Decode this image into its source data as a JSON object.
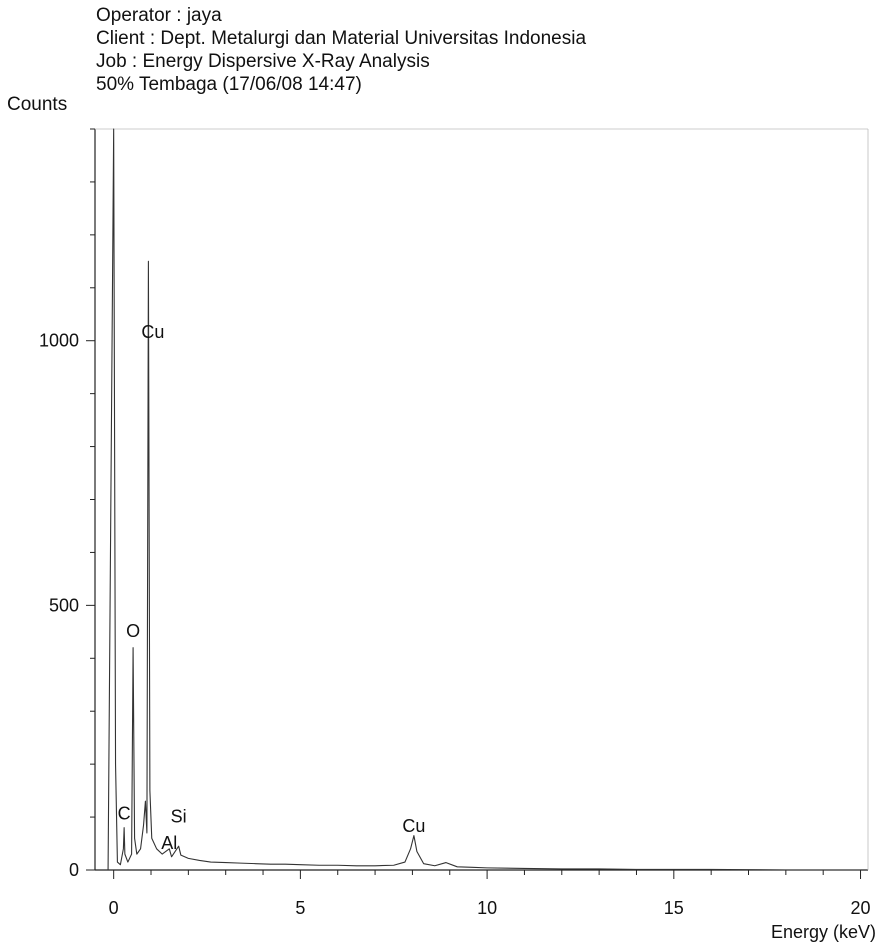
{
  "header": {
    "operator": "Operator : jaya",
    "client": "Client : Dept. Metalurgi dan Material Universitas Indonesia",
    "job": "Job : Energy Dispersive X-Ray Analysis",
    "sample": "50% Tembaga (17/06/08 14:47)"
  },
  "chart_data": {
    "type": "line",
    "xlabel": "Energy (keV)",
    "ylabel": "Counts",
    "xlim": [
      -0.5,
      20.2
    ],
    "ylim": [
      0,
      1400
    ],
    "xticks": [
      0,
      5,
      10,
      15,
      20
    ],
    "yticks": [
      0,
      500,
      1000
    ],
    "grid": false,
    "series": [
      {
        "points": [
          [
            -0.15,
            0
          ],
          [
            0.0,
            1400
          ],
          [
            0.05,
            200
          ],
          [
            0.1,
            15
          ],
          [
            0.18,
            10
          ],
          [
            0.26,
            40
          ],
          [
            0.28,
            80
          ],
          [
            0.3,
            30
          ],
          [
            0.38,
            15
          ],
          [
            0.48,
            30
          ],
          [
            0.52,
            420
          ],
          [
            0.56,
            60
          ],
          [
            0.62,
            30
          ],
          [
            0.72,
            40
          ],
          [
            0.8,
            85
          ],
          [
            0.85,
            130
          ],
          [
            0.89,
            70
          ],
          [
            0.93,
            1150
          ],
          [
            0.97,
            150
          ],
          [
            1.02,
            60
          ],
          [
            1.15,
            40
          ],
          [
            1.3,
            30
          ],
          [
            1.49,
            40
          ],
          [
            1.55,
            25
          ],
          [
            1.74,
            45
          ],
          [
            1.8,
            28
          ],
          [
            2.0,
            22
          ],
          [
            2.3,
            18
          ],
          [
            2.6,
            15
          ],
          [
            3.0,
            14
          ],
          [
            3.4,
            13
          ],
          [
            3.8,
            12
          ],
          [
            4.2,
            11
          ],
          [
            4.6,
            11
          ],
          [
            5.0,
            10
          ],
          [
            5.5,
            9
          ],
          [
            6.0,
            9
          ],
          [
            6.5,
            8
          ],
          [
            7.0,
            8
          ],
          [
            7.5,
            9
          ],
          [
            7.8,
            15
          ],
          [
            7.95,
            40
          ],
          [
            8.04,
            65
          ],
          [
            8.12,
            35
          ],
          [
            8.3,
            12
          ],
          [
            8.6,
            8
          ],
          [
            8.9,
            14
          ],
          [
            9.2,
            6
          ],
          [
            9.6,
            5
          ],
          [
            10.0,
            4
          ],
          [
            11.0,
            3
          ],
          [
            12.0,
            2
          ],
          [
            13.0,
            2
          ],
          [
            14.0,
            1
          ],
          [
            16.0,
            1
          ],
          [
            18.0,
            0
          ],
          [
            20.0,
            0
          ]
        ]
      }
    ],
    "annotations": [
      {
        "label": "Cu",
        "x": 1.05,
        "y": 1005
      },
      {
        "label": "O",
        "x": 0.52,
        "y": 440
      },
      {
        "label": "C",
        "x": 0.28,
        "y": 95
      },
      {
        "label": "Si",
        "x": 1.74,
        "y": 90
      },
      {
        "label": "Al",
        "x": 1.49,
        "y": 40
      },
      {
        "label": "Cu",
        "x": 8.04,
        "y": 72
      }
    ]
  }
}
